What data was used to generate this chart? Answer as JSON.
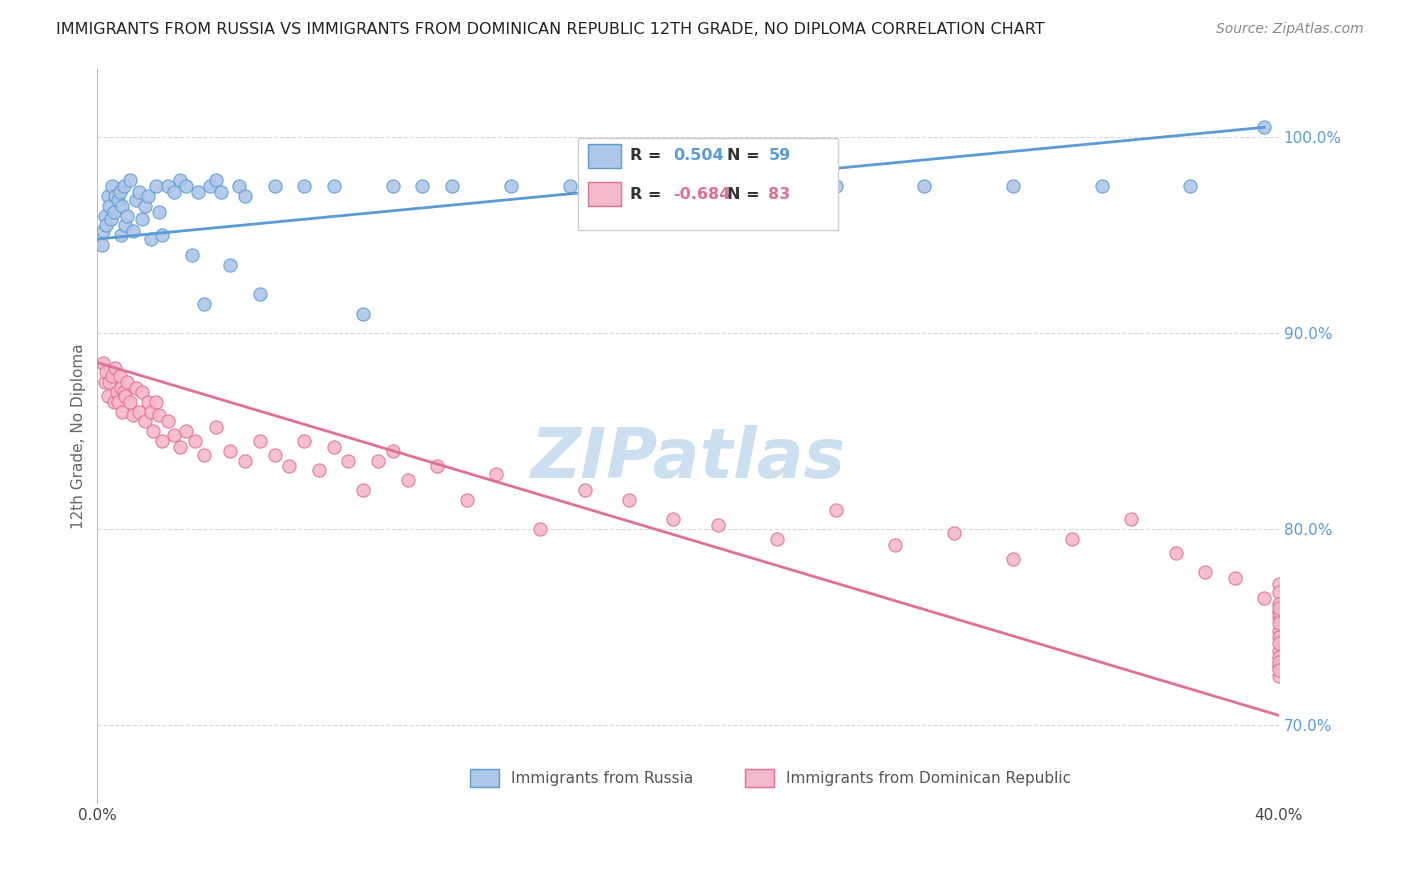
{
  "title": "IMMIGRANTS FROM RUSSIA VS IMMIGRANTS FROM DOMINICAN REPUBLIC 12TH GRADE, NO DIPLOMA CORRELATION CHART",
  "source": "Source: ZipAtlas.com",
  "ylabel_label": "12th Grade, No Diploma",
  "legend_russia_label": "Immigrants from Russia",
  "legend_dr_label": "Immigrants from Dominican Republic",
  "r_russia": "0.504",
  "n_russia": "59",
  "r_dr": "-0.684",
  "n_dr": "83",
  "xlim": [
    0.0,
    40.0
  ],
  "ylim": [
    66.0,
    103.5
  ],
  "russia_color": "#aec6e8",
  "dr_color": "#f5b8cb",
  "russia_line_color": "#5b9bd5",
  "dr_line_color": "#e07090",
  "russia_scatter_x": [
    0.15,
    0.2,
    0.25,
    0.3,
    0.35,
    0.4,
    0.45,
    0.5,
    0.55,
    0.6,
    0.7,
    0.75,
    0.8,
    0.85,
    0.9,
    0.95,
    1.0,
    1.1,
    1.2,
    1.3,
    1.4,
    1.5,
    1.6,
    1.7,
    1.8,
    2.0,
    2.1,
    2.2,
    2.4,
    2.6,
    2.8,
    3.0,
    3.2,
    3.4,
    3.6,
    3.8,
    4.0,
    4.2,
    4.5,
    4.8,
    5.0,
    5.5,
    6.0,
    7.0,
    8.0,
    9.0,
    10.0,
    11.0,
    12.0,
    14.0,
    16.0,
    19.0,
    22.0,
    25.0,
    28.0,
    31.0,
    34.0,
    37.0,
    39.5
  ],
  "russia_scatter_y": [
    94.5,
    95.2,
    96.0,
    95.5,
    97.0,
    96.5,
    95.8,
    97.5,
    96.2,
    97.0,
    96.8,
    97.2,
    95.0,
    96.5,
    97.5,
    95.5,
    96.0,
    97.8,
    95.2,
    96.8,
    97.2,
    95.8,
    96.5,
    97.0,
    94.8,
    97.5,
    96.2,
    95.0,
    97.5,
    97.2,
    97.8,
    97.5,
    94.0,
    97.2,
    91.5,
    97.5,
    97.8,
    97.2,
    93.5,
    97.5,
    97.0,
    92.0,
    97.5,
    97.5,
    97.5,
    91.0,
    97.5,
    97.5,
    97.5,
    97.5,
    97.5,
    97.5,
    97.5,
    97.5,
    97.5,
    97.5,
    97.5,
    97.5,
    100.5
  ],
  "dr_scatter_x": [
    0.2,
    0.25,
    0.3,
    0.35,
    0.4,
    0.5,
    0.55,
    0.6,
    0.65,
    0.7,
    0.75,
    0.8,
    0.85,
    0.9,
    0.95,
    1.0,
    1.1,
    1.2,
    1.3,
    1.4,
    1.5,
    1.6,
    1.7,
    1.8,
    1.9,
    2.0,
    2.1,
    2.2,
    2.4,
    2.6,
    2.8,
    3.0,
    3.3,
    3.6,
    4.0,
    4.5,
    5.0,
    5.5,
    6.0,
    6.5,
    7.0,
    7.5,
    8.0,
    8.5,
    9.0,
    9.5,
    10.0,
    10.5,
    11.5,
    12.5,
    13.5,
    15.0,
    16.5,
    18.0,
    19.5,
    21.0,
    23.0,
    25.0,
    27.0,
    29.0,
    31.0,
    33.0,
    35.0,
    36.5,
    37.5,
    38.5,
    39.5,
    40.0,
    40.0,
    40.0,
    40.0,
    40.0,
    40.0,
    40.0,
    40.0,
    40.0,
    40.0,
    40.0,
    40.0,
    40.0,
    40.0,
    40.0,
    40.0
  ],
  "dr_scatter_y": [
    88.5,
    87.5,
    88.0,
    86.8,
    87.5,
    87.8,
    86.5,
    88.2,
    87.0,
    86.5,
    87.8,
    87.2,
    86.0,
    87.0,
    86.8,
    87.5,
    86.5,
    85.8,
    87.2,
    86.0,
    87.0,
    85.5,
    86.5,
    86.0,
    85.0,
    86.5,
    85.8,
    84.5,
    85.5,
    84.8,
    84.2,
    85.0,
    84.5,
    83.8,
    85.2,
    84.0,
    83.5,
    84.5,
    83.8,
    83.2,
    84.5,
    83.0,
    84.2,
    83.5,
    82.0,
    83.5,
    84.0,
    82.5,
    83.2,
    81.5,
    82.8,
    80.0,
    82.0,
    81.5,
    80.5,
    80.2,
    79.5,
    81.0,
    79.2,
    79.8,
    78.5,
    79.5,
    80.5,
    78.8,
    77.8,
    77.5,
    76.5,
    77.2,
    76.8,
    75.5,
    74.8,
    76.2,
    75.8,
    74.5,
    73.8,
    76.0,
    75.2,
    73.5,
    74.2,
    73.0,
    72.5,
    73.2,
    72.8
  ],
  "russia_trend_x": [
    0.0,
    39.5
  ],
  "russia_trend_y": [
    94.8,
    100.5
  ],
  "dr_trend_x": [
    0.0,
    40.0
  ],
  "dr_trend_y": [
    88.5,
    70.5
  ],
  "watermark": "ZIPatlas",
  "watermark_color": "#ccdff0",
  "background_color": "#ffffff",
  "grid_color": "#d8d8d8",
  "yticks": [
    70,
    80,
    90,
    100
  ],
  "ytick_labels": [
    "70.0%",
    "80.0%",
    "90.0%",
    "100.0%"
  ],
  "xtick_labels_show": [
    "0.0%",
    "40.0%"
  ]
}
